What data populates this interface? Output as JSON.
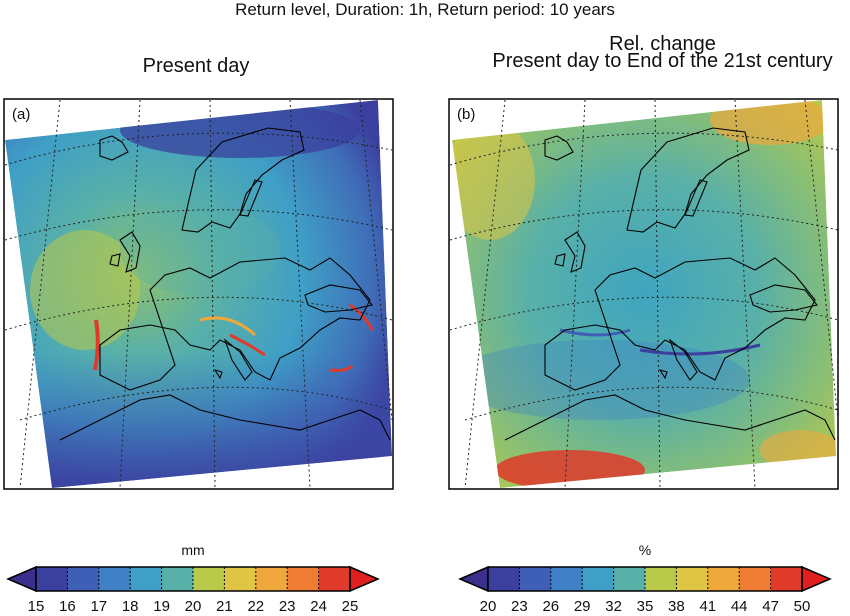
{
  "figure": {
    "main_title": "Return level, Duration: 1h, Return period: 10 years"
  },
  "panels": [
    {
      "id": "a",
      "label": "(a)",
      "title": "Present day",
      "colormap": [
        "#3b3f9e",
        "#3f5fb6",
        "#3f80c6",
        "#3f9fc6",
        "#58b0a8",
        "#8ec070",
        "#b9c94a",
        "#dfc543",
        "#eea83c",
        "#ee7d33",
        "#df3a2a"
      ],
      "field": "present-day return level",
      "colorbar": {
        "unit": "mm",
        "ticks": [
          "15",
          "16",
          "17",
          "18",
          "19",
          "20",
          "21",
          "22",
          "23",
          "24",
          "25"
        ],
        "extend": "both",
        "under_color": "#3b2f8c",
        "over_color": "#e02020"
      }
    },
    {
      "id": "b",
      "label": "(b)",
      "title_line1": "Rel. change",
      "title_line2": "Present day to End of the 21st century",
      "colormap": [
        "#3b3f9e",
        "#3f5fb6",
        "#3f80c6",
        "#3f9fc6",
        "#58b0a8",
        "#8ec070",
        "#b9c94a",
        "#dfc543",
        "#eea83c",
        "#ee7d33",
        "#df3a2a"
      ],
      "colorbar": {
        "unit": "%",
        "ticks": [
          "20",
          "23",
          "26",
          "29",
          "32",
          "35",
          "38",
          "41",
          "44",
          "47",
          "50"
        ],
        "extend": "both",
        "under_color": "#3b2f8c",
        "over_color": "#e02020"
      }
    }
  ]
}
